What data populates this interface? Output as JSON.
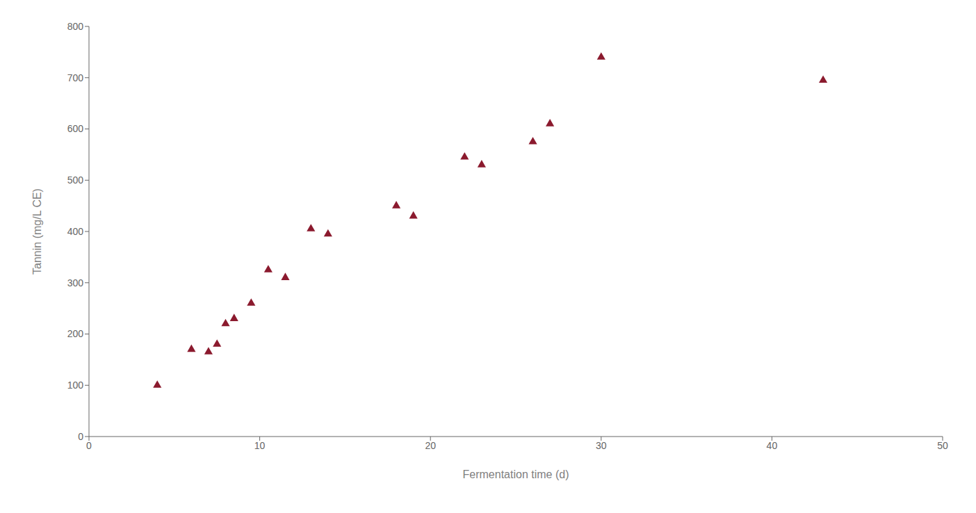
{
  "chart_data": {
    "type": "scatter",
    "x": [
      4,
      6,
      7,
      7.5,
      8,
      8.5,
      9.5,
      10.5,
      11.5,
      13,
      14,
      18,
      19,
      22,
      23,
      26,
      27,
      30,
      43
    ],
    "y": [
      100,
      170,
      165,
      180,
      220,
      230,
      260,
      325,
      310,
      405,
      395,
      450,
      430,
      545,
      530,
      575,
      610,
      740,
      695
    ],
    "color": "#8B1A2E",
    "marker": "triangle",
    "xlabel": "Fermentation time (d)",
    "ylabel": "Tannin (mg/L CE)",
    "xlim": [
      0,
      50
    ],
    "ylim": [
      0,
      800
    ],
    "xticks": [
      0,
      10,
      20,
      30,
      40,
      50
    ],
    "yticks": [
      0,
      100,
      200,
      300,
      400,
      500,
      600,
      700,
      800
    ],
    "grid": false
  }
}
